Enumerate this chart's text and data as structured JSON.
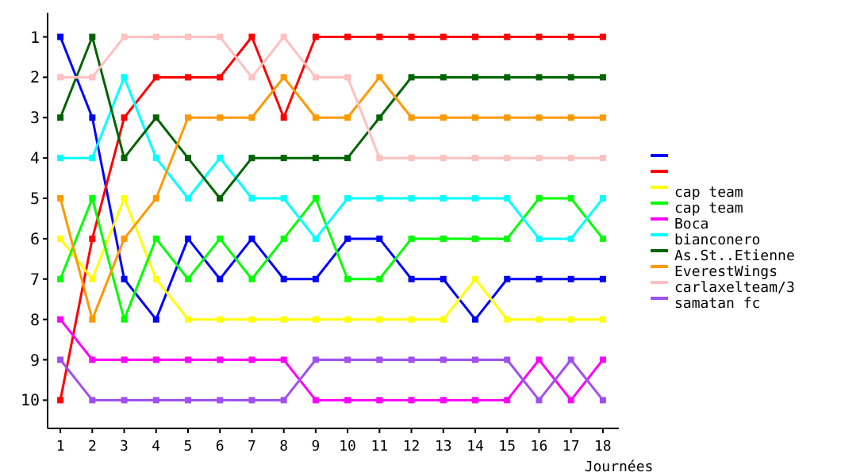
{
  "chart_data": {
    "type": "line",
    "xlabel": "Journées",
    "x": [
      1,
      2,
      3,
      4,
      5,
      6,
      7,
      8,
      9,
      10,
      11,
      12,
      13,
      14,
      15,
      16,
      17,
      18
    ],
    "xlim": [
      0.6,
      18.5
    ],
    "xticks": [
      1,
      2,
      3,
      4,
      5,
      6,
      7,
      8,
      9,
      10,
      11,
      12,
      13,
      14,
      15,
      16,
      17,
      18
    ],
    "ylim": [
      10.7,
      0.4
    ],
    "yticks": [
      1,
      2,
      3,
      4,
      5,
      6,
      7,
      8,
      9,
      10
    ],
    "marker": "square",
    "legend": "right",
    "grid": false,
    "series": [
      {
        "color": "#0000ff",
        "values": [
          1,
          3,
          7,
          8,
          6,
          7,
          6,
          7,
          7,
          6,
          6,
          7,
          7,
          8,
          7,
          7,
          7,
          7
        ]
      },
      {
        "color": "#ff0000",
        "values": [
          10,
          6,
          3,
          2,
          2,
          2,
          1,
          3,
          1,
          1,
          1,
          1,
          1,
          1,
          1,
          1,
          1,
          1
        ]
      },
      {
        "name": "cap team",
        "color": "#ffff00",
        "values": [
          6,
          7,
          5,
          7,
          8,
          8,
          8,
          8,
          8,
          8,
          8,
          8,
          8,
          7,
          8,
          8,
          8,
          8
        ]
      },
      {
        "name": "cap team",
        "color": "#00ff00",
        "values": [
          7,
          5,
          8,
          6,
          7,
          6,
          7,
          6,
          5,
          7,
          7,
          6,
          6,
          6,
          6,
          5,
          5,
          6
        ]
      },
      {
        "name": "Boca",
        "color": "#ff00ff",
        "values": [
          8,
          9,
          9,
          9,
          9,
          9,
          9,
          9,
          10,
          10,
          10,
          10,
          10,
          10,
          10,
          9,
          10,
          9
        ]
      },
      {
        "name": "bianconero",
        "color": "#00ffff",
        "values": [
          4,
          4,
          2,
          4,
          5,
          4,
          5,
          5,
          6,
          5,
          5,
          5,
          5,
          5,
          5,
          6,
          6,
          5
        ]
      },
      {
        "name": "As.St..Etienne",
        "color": "#006400",
        "values": [
          3,
          1,
          4,
          3,
          4,
          5,
          4,
          4,
          4,
          4,
          3,
          2,
          2,
          2,
          2,
          2,
          2,
          2
        ]
      },
      {
        "name": "EverestWings",
        "color": "#ff9900",
        "values": [
          5,
          8,
          6,
          5,
          3,
          3,
          3,
          2,
          3,
          3,
          2,
          3,
          3,
          3,
          3,
          3,
          3,
          3
        ]
      },
      {
        "name": "carlaxelteam/3",
        "color": "#ffc0c0",
        "values": [
          2,
          2,
          1,
          1,
          1,
          1,
          2,
          1,
          2,
          2,
          4,
          4,
          4,
          4,
          4,
          4,
          4,
          4
        ]
      },
      {
        "name": "samatan fc",
        "color": "#a050f0",
        "values": [
          9,
          10,
          10,
          10,
          10,
          10,
          10,
          10,
          9,
          9,
          9,
          9,
          9,
          9,
          9,
          10,
          9,
          10
        ]
      }
    ]
  }
}
